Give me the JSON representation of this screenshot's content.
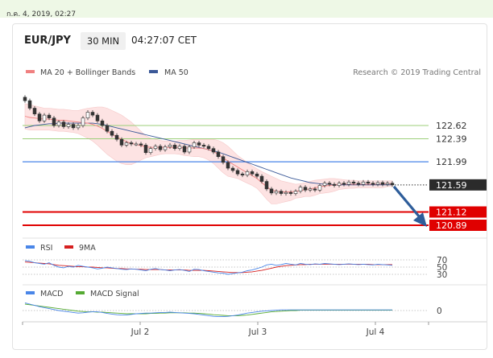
{
  "date_banner": "ก.ค. 4, 2019, 02:27",
  "header": {
    "symbol": "EUR/JPY",
    "timeframe": "30 MIN",
    "time": "04:27:07 CET"
  },
  "credit": "Research © 2019 Trading Central",
  "colors": {
    "ma20": "#f08080",
    "bands": "#fde3e3",
    "ma50": "#3b5998",
    "resistance": "#9ccf7a",
    "pivot": "#4a86e8",
    "support": "#e00000",
    "price_tag": "#2b2b2b",
    "arrow": "#2e5d9a",
    "rsi": "#4a86e8",
    "rsi_ma": "#d62020",
    "macd": "#4a86e8",
    "macd_signal": "#55aa33"
  },
  "chart_data": [
    {
      "type": "candlestick",
      "legend": [
        {
          "label": "MA 20 + Bollinger Bands",
          "color": "#f08080"
        },
        {
          "label": "MA 50",
          "color": "#3b5998"
        }
      ],
      "x_ticks": [
        "Jul 2",
        "Jul 3",
        "Jul 4"
      ],
      "ylim": [
        120.7,
        122.95
      ],
      "levels": [
        {
          "value": 122.62,
          "label": "122.62",
          "kind": "resistance"
        },
        {
          "value": 122.39,
          "label": "122.39",
          "kind": "resistance"
        },
        {
          "value": 121.99,
          "label": "121.99",
          "kind": "pivot"
        },
        {
          "value": 121.59,
          "label": "121.59",
          "kind": "last"
        },
        {
          "value": 121.12,
          "label": "121.12",
          "kind": "support"
        },
        {
          "value": 120.89,
          "label": "120.89",
          "kind": "support"
        }
      ],
      "close": [
        123.05,
        122.92,
        122.82,
        122.7,
        122.8,
        122.75,
        122.62,
        122.68,
        122.6,
        122.64,
        122.58,
        122.62,
        122.75,
        122.85,
        122.8,
        122.7,
        122.62,
        122.52,
        122.45,
        122.38,
        122.28,
        122.32,
        122.3,
        122.3,
        122.28,
        122.15,
        122.22,
        122.26,
        122.2,
        122.25,
        122.28,
        122.22,
        122.26,
        122.16,
        122.25,
        122.32,
        122.28,
        122.26,
        122.22,
        122.16,
        122.08,
        121.98,
        121.88,
        121.84,
        121.78,
        121.76,
        121.82,
        121.78,
        121.74,
        121.65,
        121.52,
        121.45,
        121.48,
        121.44,
        121.46,
        121.44,
        121.48,
        121.55,
        121.5,
        121.52,
        121.5,
        121.58,
        121.62,
        121.6,
        121.58,
        121.62,
        121.6,
        121.64,
        121.62,
        121.6,
        121.64,
        121.62,
        121.6,
        121.63,
        121.6,
        121.62,
        121.59
      ],
      "ma20": [
        122.78,
        122.76,
        122.75,
        122.74,
        122.73,
        122.73,
        122.72,
        122.71,
        122.71,
        122.7,
        122.69,
        122.68,
        122.67,
        122.66,
        122.64,
        122.61,
        122.57,
        122.52,
        122.47,
        122.42,
        122.38,
        122.34,
        122.31,
        122.29,
        122.27,
        122.25,
        122.24,
        122.24,
        122.24,
        122.24,
        122.24,
        122.24,
        122.24,
        122.23,
        122.23,
        122.23,
        122.23,
        122.22,
        122.2,
        122.17,
        122.12,
        122.06,
        122.0,
        121.95,
        121.9,
        121.85,
        121.8,
        121.75,
        121.7,
        121.63,
        121.56,
        121.5,
        121.48,
        121.47,
        121.47,
        121.47,
        121.48,
        121.49,
        121.51,
        121.52,
        121.54,
        121.56,
        121.57,
        121.58,
        121.59,
        121.6,
        121.6,
        121.6,
        121.6,
        121.6,
        121.6,
        121.6,
        121.6,
        121.6,
        121.6,
        121.61,
        121.61
      ],
      "upper_band": [
        123.0,
        122.98,
        122.96,
        122.94,
        122.92,
        122.92,
        122.91,
        122.9,
        122.9,
        122.89,
        122.88,
        122.88,
        122.9,
        122.92,
        122.93,
        122.94,
        122.94,
        122.92,
        122.88,
        122.84,
        122.8,
        122.74,
        122.68,
        122.6,
        122.52,
        122.44,
        122.4,
        122.38,
        122.36,
        122.35,
        122.35,
        122.35,
        122.36,
        122.36,
        122.37,
        122.38,
        122.38,
        122.38,
        122.38,
        122.38,
        122.36,
        122.32,
        122.26,
        122.18,
        122.1,
        122.04,
        121.98,
        121.92,
        121.87,
        121.82,
        121.78,
        121.74,
        121.7,
        121.66,
        121.64,
        121.62,
        121.6,
        121.61,
        121.63,
        121.65,
        121.67,
        121.68,
        121.69,
        121.7,
        121.7,
        121.69,
        121.68,
        121.67,
        121.67,
        121.66,
        121.66,
        121.66,
        121.66,
        121.66,
        121.66,
        121.66,
        121.66
      ],
      "lower_band": [
        122.56,
        122.54,
        122.54,
        122.54,
        122.54,
        122.54,
        122.53,
        122.52,
        122.52,
        122.51,
        122.5,
        122.48,
        122.44,
        122.4,
        122.35,
        122.28,
        122.2,
        122.12,
        122.06,
        122.0,
        121.96,
        121.94,
        121.94,
        121.98,
        122.02,
        122.06,
        122.08,
        122.1,
        122.12,
        122.13,
        122.13,
        122.13,
        122.12,
        122.1,
        122.09,
        122.08,
        122.08,
        122.06,
        122.02,
        121.96,
        121.88,
        121.8,
        121.74,
        121.72,
        121.7,
        121.66,
        121.62,
        121.58,
        121.53,
        121.44,
        121.34,
        121.26,
        121.26,
        121.28,
        121.3,
        121.32,
        121.36,
        121.37,
        121.39,
        121.39,
        121.41,
        121.44,
        121.45,
        121.46,
        121.48,
        121.51,
        121.52,
        121.53,
        121.53,
        121.54,
        121.54,
        121.54,
        121.54,
        121.54,
        121.54,
        121.56,
        121.56
      ],
      "ma50": [
        122.58,
        122.6,
        122.62,
        122.63,
        122.64,
        122.65,
        122.65,
        122.66,
        122.66,
        122.66,
        122.66,
        122.66,
        122.66,
        122.66,
        122.66,
        122.65,
        122.64,
        122.62,
        122.6,
        122.58,
        122.56,
        122.54,
        122.52,
        122.5,
        122.48,
        122.46,
        122.44,
        122.42,
        122.4,
        122.38,
        122.36,
        122.34,
        122.32,
        122.3,
        122.28,
        122.26,
        122.24,
        122.22,
        122.2,
        122.18,
        122.16,
        122.13,
        122.1,
        122.07,
        122.04,
        122.01,
        121.98,
        121.95,
        121.92,
        121.89,
        121.86,
        121.83,
        121.8,
        121.77,
        121.74,
        121.71,
        121.69,
        121.67,
        121.65,
        121.63,
        121.62,
        121.61,
        121.6,
        121.6,
        121.59,
        121.59,
        121.59,
        121.59,
        121.59,
        121.59,
        121.59,
        121.59,
        121.59,
        121.59,
        121.59,
        121.59,
        121.59
      ]
    },
    {
      "type": "line",
      "legend": [
        {
          "label": "RSI",
          "color": "#4a86e8"
        },
        {
          "label": "9MA",
          "color": "#d62020"
        }
      ],
      "y_ticks": [
        "70",
        "50",
        "30"
      ],
      "ylim": [
        20,
        80
      ],
      "rsi": [
        68,
        66,
        62,
        60,
        58,
        62,
        55,
        50,
        48,
        52,
        50,
        55,
        52,
        50,
        48,
        45,
        47,
        50,
        48,
        46,
        44,
        43,
        45,
        44,
        42,
        40,
        44,
        46,
        43,
        42,
        40,
        42,
        43,
        41,
        38,
        44,
        43,
        40,
        38,
        36,
        34,
        33,
        30,
        32,
        34,
        36,
        40,
        42,
        46,
        50,
        56,
        58,
        55,
        57,
        60,
        58,
        56,
        60,
        58,
        57,
        59,
        58,
        60,
        59,
        58,
        57,
        58,
        59,
        58,
        57,
        58,
        57,
        56,
        58,
        57,
        56,
        55
      ],
      "ma9": [
        64,
        63,
        62,
        61,
        60,
        59,
        57,
        55,
        54,
        53,
        52,
        51,
        51,
        50,
        50,
        49,
        48,
        48,
        47,
        46,
        46,
        45,
        45,
        44,
        44,
        43,
        43,
        43,
        43,
        42,
        42,
        42,
        42,
        42,
        41,
        41,
        41,
        41,
        40,
        39,
        38,
        37,
        36,
        35,
        35,
        35,
        36,
        37,
        39,
        41,
        44,
        47,
        50,
        52,
        54,
        55,
        56,
        57,
        57,
        58,
        58,
        58,
        58,
        58,
        58,
        58,
        58,
        58,
        58,
        58,
        58,
        58,
        57,
        57,
        57,
        57,
        57
      ]
    },
    {
      "type": "line",
      "legend": [
        {
          "label": "MACD",
          "color": "#4a86e8"
        },
        {
          "label": "MACD Signal",
          "color": "#55aa33"
        }
      ],
      "y_ticks": [
        "0"
      ],
      "ylim": [
        -0.3,
        0.3
      ],
      "macd": [
        0.24,
        0.2,
        0.16,
        0.12,
        0.09,
        0.06,
        0.03,
        0.0,
        -0.02,
        -0.04,
        -0.06,
        -0.08,
        -0.07,
        -0.05,
        -0.04,
        -0.04,
        -0.06,
        -0.09,
        -0.11,
        -0.13,
        -0.14,
        -0.14,
        -0.12,
        -0.1,
        -0.09,
        -0.08,
        -0.08,
        -0.07,
        -0.06,
        -0.06,
        -0.05,
        -0.06,
        -0.07,
        -0.08,
        -0.09,
        -0.1,
        -0.12,
        -0.14,
        -0.16,
        -0.18,
        -0.19,
        -0.19,
        -0.18,
        -0.16,
        -0.14,
        -0.11,
        -0.08,
        -0.06,
        -0.04,
        -0.02,
        -0.01,
        0.0,
        0.01,
        0.02,
        0.02,
        0.02,
        0.02,
        0.02,
        0.02,
        0.02,
        0.02,
        0.02,
        0.02,
        0.02,
        0.02,
        0.02,
        0.02,
        0.02,
        0.02,
        0.02,
        0.02,
        0.02,
        0.02,
        0.02,
        0.02,
        0.02,
        0.02
      ],
      "signal": [
        0.2,
        0.18,
        0.16,
        0.14,
        0.12,
        0.1,
        0.08,
        0.06,
        0.04,
        0.02,
        0.0,
        -0.02,
        -0.03,
        -0.04,
        -0.04,
        -0.05,
        -0.05,
        -0.06,
        -0.07,
        -0.08,
        -0.09,
        -0.1,
        -0.1,
        -0.1,
        -0.1,
        -0.1,
        -0.09,
        -0.09,
        -0.08,
        -0.08,
        -0.07,
        -0.07,
        -0.07,
        -0.07,
        -0.08,
        -0.08,
        -0.09,
        -0.1,
        -0.11,
        -0.13,
        -0.14,
        -0.15,
        -0.16,
        -0.16,
        -0.16,
        -0.15,
        -0.14,
        -0.12,
        -0.1,
        -0.08,
        -0.06,
        -0.04,
        -0.03,
        -0.02,
        -0.01,
        0.0,
        0.0,
        0.01,
        0.01,
        0.01,
        0.01,
        0.01,
        0.01,
        0.01,
        0.01,
        0.01,
        0.01,
        0.01,
        0.01,
        0.01,
        0.01,
        0.01,
        0.01,
        0.01,
        0.01,
        0.01,
        0.01
      ]
    }
  ]
}
